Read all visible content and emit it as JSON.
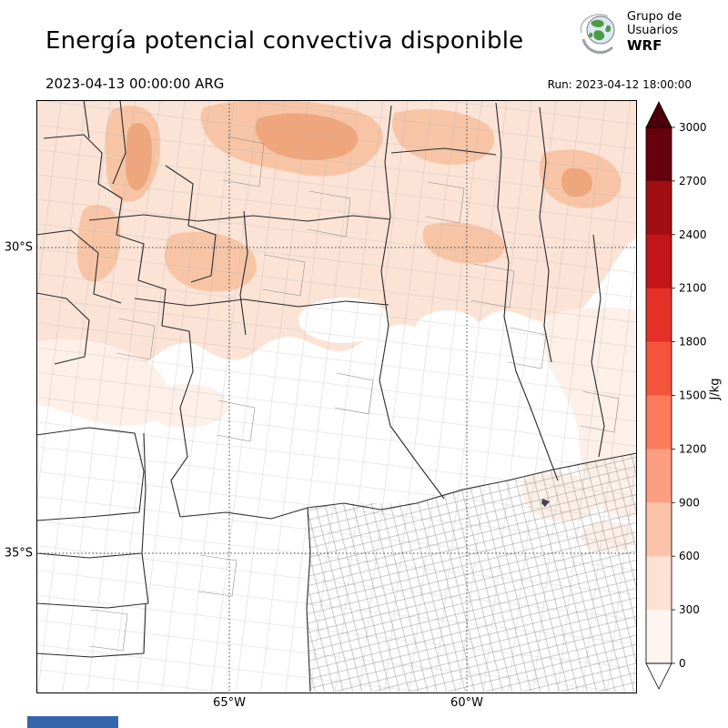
{
  "header": {
    "title": "Energía potencial convectiva disponible",
    "logo": {
      "org_line1": "Grupo de",
      "org_line2": "Usuarios",
      "org_line3": "WRF"
    },
    "valid_time": "2023-04-13 00:00:00 ARG",
    "run_time": "Run: 2023-04-12 18:00:00"
  },
  "map": {
    "lat_ticks": [
      "30°S",
      "35°S"
    ],
    "lon_ticks": [
      "65°W",
      "60°W"
    ]
  },
  "colorbar": {
    "unit": "J/kg",
    "tick_labels": [
      "3000",
      "2700",
      "2400",
      "2100",
      "1800",
      "1500",
      "1200",
      "900",
      "600",
      "300",
      "0"
    ],
    "segment_colors_top_to_bottom": [
      "#67000d",
      "#a00e14",
      "#c3161b",
      "#e43027",
      "#f5543c",
      "#fb7a5b",
      "#fc9e80",
      "#fcc2aa",
      "#fee1d3",
      "#fff5f0"
    ],
    "over_color": "#4c0009",
    "under_color": "#ffffff"
  },
  "footer": {
    "bar_color": "#3566ad"
  }
}
